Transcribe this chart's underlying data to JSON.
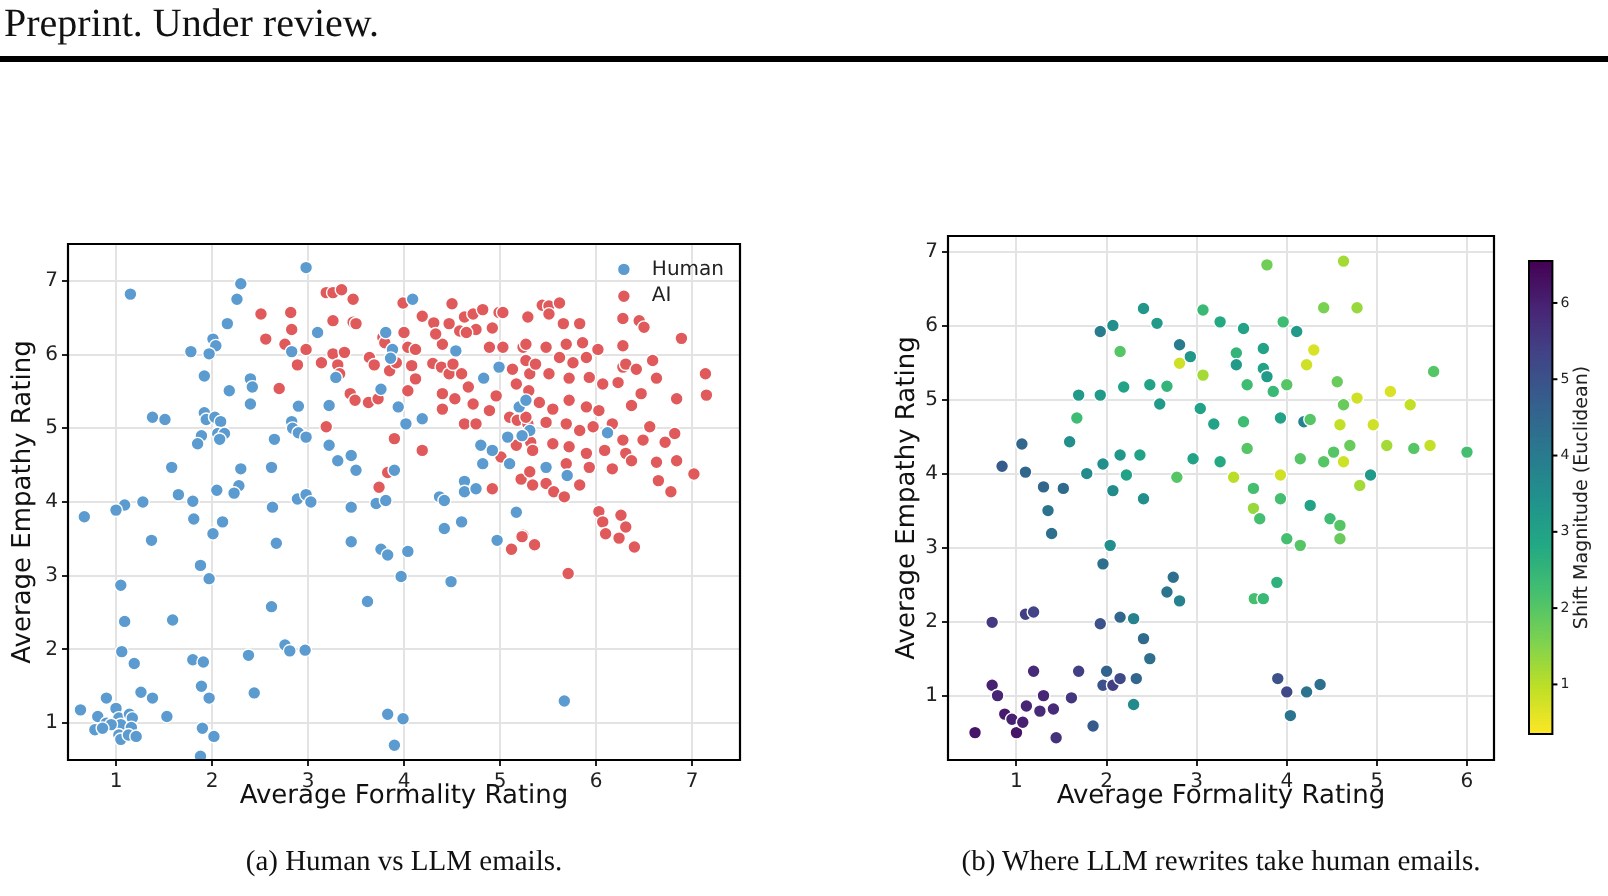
{
  "chart_data": [
    {
      "type": "scatter",
      "xlabel": "Average Formality Rating",
      "ylabel": "Average Empathy Rating",
      "xlim": [
        0.5,
        7.5
      ],
      "ylim": [
        0.5,
        7.5
      ],
      "xticks": [
        1,
        2,
        3,
        4,
        5,
        6,
        7
      ],
      "yticks": [
        1,
        2,
        3,
        4,
        5,
        6,
        7
      ],
      "grid": true,
      "legend": "top right",
      "marker": "circle",
      "series": [
        {
          "name": "Human",
          "color": "#5b9bd0",
          "x": [
            2.98,
            1.15,
            2.3,
            2.26,
            2.16,
            2.01,
            2.04,
            1.78,
            1.97,
            2.83,
            1.92,
            2.18,
            2.4,
            2.42,
            2.4,
            2.9,
            1.38,
            1.51,
            1.92,
            1.94,
            2.03,
            2.09,
            1.89,
            1.85,
            2.06,
            2.13,
            2.08,
            2.83,
            2.84,
            2.65,
            2.9,
            2.98,
            1.58,
            2.3,
            2.62,
            1.65,
            1.8,
            1.28,
            1.09,
            1.0,
            0.67,
            2.05,
            2.28,
            2.23,
            1.81,
            2.01,
            2.11,
            2.63,
            2.89,
            2.98,
            3.03,
            1.37,
            2.67,
            1.88,
            1.97,
            1.05,
            1.09,
            1.59,
            2.62,
            1.06,
            1.19,
            1.8,
            1.91,
            2.38,
            2.76,
            2.81,
            2.97,
            1.26,
            1.38,
            0.9,
            1.89,
            1.97,
            2.44,
            1.53,
            0.63,
            0.81,
            1.0,
            1.03,
            1.14,
            1.17,
            1.05,
            0.9,
            0.95,
            0.78,
            0.86,
            1.16,
            1.03,
            1.05,
            1.13,
            1.21,
            1.9,
            2.02,
            1.88,
            4.09,
            3.1,
            3.81,
            3.88,
            3.86,
            3.29,
            3.22,
            3.76,
            3.94,
            4.02,
            4.19,
            3.22,
            3.31,
            3.45,
            3.5,
            3.9,
            3.45,
            3.71,
            3.81,
            3.45,
            3.76,
            3.83,
            4.04,
            3.97,
            3.62,
            4.37,
            4.42,
            4.42,
            4.6,
            4.63,
            4.63,
            4.75,
            4.49,
            4.8,
            4.82,
            4.92,
            4.97,
            5.17,
            5.1,
            5.08,
            4.83,
            4.99,
            4.54,
            5.2,
            5.27,
            5.31,
            3.83,
            3.99,
            3.9,
            5.48,
            5.7,
            6.12,
            5.23,
            5.67
          ],
          "values": [
            7.18,
            6.82,
            6.96,
            6.75,
            6.42,
            6.21,
            6.12,
            6.04,
            6.01,
            6.04,
            5.71,
            5.51,
            5.67,
            5.56,
            5.33,
            5.3,
            5.15,
            5.12,
            5.21,
            5.12,
            5.15,
            5.09,
            4.9,
            4.79,
            4.93,
            4.93,
            4.85,
            5.09,
            5.0,
            4.85,
            4.94,
            4.88,
            4.47,
            4.45,
            4.47,
            4.1,
            4.01,
            4.0,
            3.96,
            3.89,
            3.8,
            4.16,
            4.22,
            4.12,
            3.77,
            3.57,
            3.73,
            3.93,
            4.04,
            4.1,
            4.0,
            3.48,
            3.44,
            3.14,
            2.96,
            2.87,
            2.38,
            2.4,
            2.58,
            1.97,
            1.81,
            1.86,
            1.83,
            1.92,
            2.06,
            1.98,
            1.99,
            1.42,
            1.34,
            1.34,
            1.5,
            1.34,
            1.41,
            1.09,
            1.18,
            1.09,
            1.2,
            1.07,
            1.12,
            1.07,
            0.98,
            1.0,
            0.98,
            0.91,
            0.93,
            0.94,
            0.84,
            0.78,
            0.84,
            0.82,
            0.93,
            0.82,
            0.55,
            6.75,
            6.3,
            6.3,
            6.07,
            5.95,
            5.69,
            5.31,
            5.53,
            5.29,
            5.06,
            5.13,
            4.77,
            4.56,
            4.63,
            4.43,
            4.43,
            3.93,
            3.98,
            4.02,
            3.46,
            3.36,
            3.28,
            3.33,
            2.99,
            2.65,
            4.07,
            4.02,
            3.64,
            3.73,
            4.28,
            4.14,
            4.18,
            2.92,
            4.77,
            4.52,
            4.7,
            3.48,
            3.86,
            4.52,
            4.88,
            5.68,
            5.83,
            6.05,
            5.29,
            5.38,
            4.97,
            1.12,
            1.06,
            0.7,
            4.47,
            4.36,
            4.94,
            4.9,
            1.3
          ]
        },
        {
          "name": "AI",
          "color": "#e0595b",
          "x": [
            2.51,
            2.82,
            2.83,
            2.56,
            2.76,
            2.98,
            2.89,
            2.7,
            3.19,
            3.26,
            3.35,
            3.47,
            3.26,
            3.47,
            3.5,
            3.14,
            3.26,
            3.38,
            3.31,
            3.33,
            3.44,
            3.49,
            3.19,
            3.63,
            3.73,
            3.64,
            3.69,
            3.78,
            3.8,
            3.85,
            3.92,
            3.99,
            4.0,
            4.04,
            4.12,
            4.08,
            4.12,
            4.04,
            3.9,
            3.83,
            3.74,
            4.19,
            4.19,
            4.31,
            4.4,
            4.33,
            4.5,
            4.47,
            4.63,
            4.72,
            4.82,
            4.75,
            4.58,
            4.65,
            4.3,
            4.39,
            4.47,
            4.51,
            4.6,
            4.4,
            4.4,
            4.53,
            4.67,
            4.72,
            4.63,
            4.75,
            4.89,
            4.96,
            4.99,
            5.03,
            5.29,
            4.92,
            4.89,
            5.03,
            5.24,
            5.27,
            5.13,
            5.17,
            5.31,
            5.1,
            5.18,
            5.29,
            5.17,
            5.01,
            5.32,
            5.22,
            5.31,
            5.24,
            5.12,
            5.36,
            4.92,
            5.44,
            5.51,
            5.62,
            5.51,
            5.83,
            5.66,
            6.28,
            6.45,
            6.5,
            6.28,
            6.89,
            5.27,
            5.48,
            5.69,
            5.86,
            6.02,
            5.9,
            5.76,
            5.62,
            5.37,
            5.51,
            5.72,
            5.93,
            6.07,
            6.28,
            6.31,
            6.42,
            6.59,
            6.63,
            6.47,
            6.37,
            6.23,
            6.84,
            7.14,
            7.15,
            6.56,
            6.72,
            6.82,
            5.3,
            5.41,
            5.55,
            5.72,
            5.9,
            6.03,
            5.27,
            5.48,
            5.69,
            5.83,
            5.97,
            6.17,
            6.28,
            6.49,
            6.31,
            5.55,
            5.34,
            5.72,
            5.9,
            6.09,
            5.69,
            5.93,
            6.17,
            6.37,
            6.63,
            6.84,
            6.65,
            6.78,
            7.02,
            5.34,
            5.48,
            5.56,
            5.67,
            5.83,
            6.03,
            6.07,
            6.1,
            6.26,
            6.31,
            6.24,
            6.4,
            5.71,
            5.23
          ],
          "values": [
            6.55,
            6.57,
            6.34,
            6.21,
            6.14,
            6.07,
            5.86,
            5.54,
            6.84,
            6.84,
            6.88,
            6.75,
            6.46,
            6.44,
            6.42,
            5.89,
            6.01,
            6.03,
            5.86,
            5.74,
            5.47,
            5.38,
            5.02,
            5.35,
            5.4,
            5.96,
            5.86,
            6.23,
            6.16,
            5.78,
            5.89,
            6.7,
            6.3,
            6.1,
            6.07,
            5.85,
            5.67,
            5.51,
            4.86,
            4.4,
            4.2,
            4.7,
            6.52,
            6.43,
            6.14,
            6.28,
            6.69,
            6.42,
            6.51,
            6.55,
            6.61,
            6.34,
            6.32,
            6.3,
            5.88,
            5.83,
            5.74,
            5.87,
            5.74,
            5.47,
            5.26,
            5.4,
            5.56,
            5.33,
            5.06,
            5.06,
            5.24,
            5.44,
            6.57,
            6.57,
            6.51,
            6.36,
            6.1,
            6.1,
            6.1,
            5.92,
            5.8,
            5.6,
            5.74,
            5.15,
            5.11,
            5.06,
            4.77,
            4.61,
            4.81,
            4.31,
            4.41,
            3.55,
            3.36,
            3.42,
            4.18,
            6.67,
            6.66,
            6.7,
            6.55,
            6.42,
            6.42,
            6.49,
            6.46,
            6.37,
            6.12,
            6.22,
            6.14,
            6.1,
            6.14,
            6.16,
            6.07,
            5.96,
            5.89,
            5.96,
            5.87,
            5.74,
            5.68,
            5.69,
            5.6,
            5.83,
            5.87,
            5.8,
            5.92,
            5.68,
            5.47,
            5.31,
            5.62,
            5.4,
            5.74,
            5.45,
            5.02,
            4.81,
            4.93,
            5.51,
            5.35,
            5.26,
            5.38,
            5.29,
            5.24,
            5.15,
            5.08,
            5.06,
            4.97,
            5.02,
            5.06,
            4.84,
            4.84,
            4.66,
            4.79,
            4.7,
            4.75,
            4.66,
            4.7,
            4.52,
            4.47,
            4.45,
            4.56,
            4.54,
            4.56,
            4.29,
            4.14,
            4.38,
            4.23,
            4.25,
            4.14,
            4.07,
            4.23,
            3.87,
            3.73,
            3.57,
            3.82,
            3.66,
            3.51,
            3.39,
            3.03,
            3.53
          ]
        }
      ],
      "annotations": [
        "Preprint. Under review.",
        "(a) Human vs LLM emails."
      ]
    },
    {
      "type": "scatter",
      "xlabel": "Average Formality Rating",
      "ylabel": "Average Empathy Rating",
      "clabel": "Shift Magnitude (Euclidean)",
      "xlim": [
        0.24,
        6.3
      ],
      "ylim": [
        0.13,
        7.21
      ],
      "xticks": [
        1,
        2,
        3,
        4,
        5,
        6
      ],
      "yticks": [
        1,
        2,
        3,
        4,
        5,
        6,
        7
      ],
      "clim": [
        0.35,
        6.55
      ],
      "cticks": [
        1,
        2,
        3,
        4,
        5,
        6
      ],
      "grid": true,
      "marker": "circle",
      "x": [
        0.54,
        0.73,
        0.79,
        0.87,
        0.95,
        1.0,
        1.07,
        1.11,
        1.19,
        1.26,
        1.3,
        1.44,
        1.41,
        1.61,
        1.69,
        1.85,
        1.96,
        2.0,
        2.07,
        2.15,
        2.3,
        2.33,
        2.48,
        2.41,
        2.67,
        0.73,
        1.1,
        1.19,
        1.93,
        2.15,
        2.3,
        1.96,
        2.04,
        1.39,
        1.35,
        1.3,
        1.52,
        0.84,
        1.1,
        1.06,
        1.59,
        1.67,
        1.69,
        1.93,
        2.19,
        2.15,
        1.93,
        2.07,
        2.41,
        2.56,
        2.48,
        2.67,
        2.59,
        2.37,
        2.15,
        1.96,
        1.78,
        2.07,
        2.41,
        2.22,
        2.78,
        2.81,
        2.74,
        2.81,
        3.78,
        4.63,
        4.41,
        4.78,
        3.07,
        3.26,
        3.52,
        3.96,
        4.11,
        2.93,
        3.07,
        3.44,
        3.44,
        3.74,
        3.74,
        3.78,
        3.56,
        3.85,
        4.3,
        4.22,
        4.56,
        3.04,
        3.19,
        3.52,
        3.93,
        4.19,
        4.26,
        4.63,
        4.59,
        4.78,
        4.96,
        5.11,
        5.15,
        5.37,
        5.63,
        5.59,
        6.0,
        5.41,
        4.7,
        4.52,
        4.41,
        4.15,
        3.56,
        3.26,
        2.96,
        3.41,
        3.63,
        3.93,
        3.93,
        3.63,
        3.7,
        4.26,
        4.48,
        4.59,
        4.15,
        4.0,
        4.59,
        4.93,
        4.81,
        4.63,
        4.0,
        3.64,
        3.89,
        3.74,
        3.9,
        4.0,
        4.04,
        4.22,
        4.37,
        2.81
      ],
      "values": [
        0.5,
        1.14,
        1.0,
        0.75,
        0.68,
        0.5,
        0.64,
        0.86,
        1.33,
        0.79,
        1.0,
        0.43,
        0.82,
        0.97,
        1.33,
        0.59,
        1.14,
        1.33,
        1.14,
        1.23,
        0.88,
        1.23,
        1.5,
        1.77,
        2.4,
        1.99,
        2.1,
        2.13,
        1.97,
        2.06,
        2.04,
        2.78,
        3.03,
        3.19,
        3.5,
        3.82,
        3.8,
        4.1,
        4.02,
        4.4,
        4.43,
        4.75,
        5.06,
        5.06,
        5.17,
        5.65,
        5.92,
        6.0,
        6.23,
        6.03,
        5.2,
        5.18,
        4.94,
        4.25,
        4.25,
        4.13,
        4.0,
        3.77,
        3.66,
        3.98,
        3.95,
        5.49,
        2.6,
        2.28,
        6.82,
        6.87,
        6.24,
        6.24,
        6.21,
        6.05,
        5.96,
        6.05,
        5.92,
        5.58,
        5.33,
        5.63,
        5.47,
        5.69,
        5.42,
        5.31,
        5.2,
        5.11,
        5.67,
        5.47,
        5.24,
        4.88,
        4.67,
        4.7,
        4.75,
        4.7,
        4.73,
        4.93,
        4.66,
        5.02,
        4.66,
        4.38,
        5.11,
        4.93,
        5.38,
        4.38,
        4.29,
        4.34,
        4.38,
        4.29,
        4.16,
        4.2,
        4.34,
        4.16,
        4.2,
        3.95,
        3.8,
        3.98,
        3.66,
        3.53,
        3.39,
        3.57,
        3.39,
        3.3,
        3.03,
        3.12,
        3.12,
        3.98,
        3.84,
        4.16,
        5.2,
        2.31,
        2.53,
        2.31,
        1.23,
        1.05,
        0.73,
        1.05,
        1.15,
        5.74
      ],
      "cvalues": [
        6.2,
        6.0,
        5.9,
        6.1,
        6.0,
        6.2,
        6.0,
        5.9,
        5.8,
        5.8,
        5.9,
        5.7,
        5.8,
        5.6,
        5.4,
        4.8,
        5.0,
        4.6,
        5.4,
        5.2,
        3.6,
        4.5,
        4.3,
        4.4,
        4.2,
        5.5,
        5.4,
        5.3,
        5.0,
        4.5,
        3.8,
        4.3,
        3.5,
        4.3,
        4.2,
        4.5,
        4.4,
        4.8,
        4.5,
        4.5,
        3.5,
        2.3,
        3.2,
        3.2,
        3.0,
        2.0,
        4.0,
        3.5,
        3.3,
        3.2,
        3.0,
        2.5,
        3.2,
        3.0,
        3.3,
        3.5,
        3.6,
        3.6,
        3.5,
        3.0,
        2.0,
        0.8,
        4.3,
        3.8,
        1.7,
        1.2,
        1.6,
        1.3,
        2.4,
        2.8,
        3.0,
        2.3,
        3.2,
        3.3,
        1.2,
        2.5,
        3.2,
        3.0,
        3.0,
        3.2,
        2.3,
        2.4,
        0.7,
        0.8,
        1.8,
        3.0,
        3.0,
        2.3,
        3.0,
        3.8,
        2.0,
        1.8,
        0.9,
        0.8,
        0.8,
        1.2,
        0.7,
        0.9,
        2.0,
        0.9,
        2.2,
        2.0,
        1.8,
        2.0,
        2.0,
        2.0,
        2.0,
        2.8,
        3.0,
        1.0,
        2.2,
        0.8,
        2.2,
        1.3,
        2.2,
        3.0,
        2.3,
        2.0,
        2.0,
        2.2,
        1.8,
        3.2,
        1.2,
        0.8,
        2.0,
        2.2,
        2.6,
        2.4,
        5.0,
        5.2,
        4.2,
        4.2,
        4.3,
        4.0
      ],
      "annotations": [
        "(b) Where LLM rewrites take human emails."
      ]
    }
  ]
}
